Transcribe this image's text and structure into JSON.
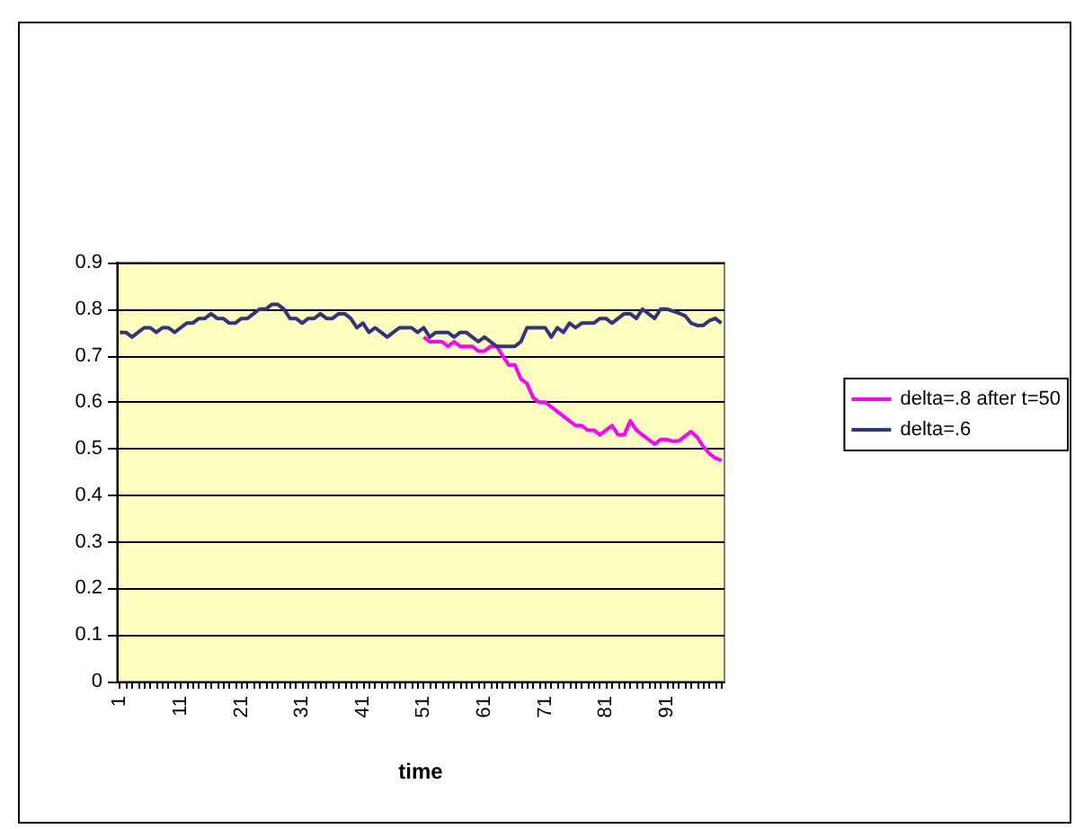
{
  "chart_data": {
    "type": "line",
    "xlabel": "time",
    "categories": [
      "1",
      null,
      null,
      null,
      null,
      null,
      null,
      null,
      null,
      null,
      "11",
      null,
      null,
      null,
      null,
      null,
      null,
      null,
      null,
      null,
      "21",
      null,
      null,
      null,
      null,
      null,
      null,
      null,
      null,
      null,
      "31",
      null,
      null,
      null,
      null,
      null,
      null,
      null,
      null,
      null,
      "41",
      null,
      null,
      null,
      null,
      null,
      null,
      null,
      null,
      null,
      "51",
      null,
      null,
      null,
      null,
      null,
      null,
      null,
      null,
      null,
      "61",
      null,
      null,
      null,
      null,
      null,
      null,
      null,
      null,
      null,
      "71",
      null,
      null,
      null,
      null,
      null,
      null,
      null,
      null,
      null,
      "81",
      null,
      null,
      null,
      null,
      null,
      null,
      null,
      null,
      null,
      "91",
      null,
      null,
      null,
      null,
      null,
      null,
      null,
      null,
      null
    ],
    "series": [
      {
        "name": "delta=.8 after t=50",
        "color": "#ff00ff",
        "values": [
          null,
          null,
          null,
          null,
          null,
          null,
          null,
          null,
          null,
          null,
          null,
          null,
          null,
          null,
          null,
          null,
          null,
          null,
          null,
          null,
          null,
          null,
          null,
          null,
          null,
          null,
          null,
          null,
          null,
          null,
          null,
          null,
          null,
          null,
          null,
          null,
          null,
          null,
          null,
          null,
          null,
          null,
          null,
          null,
          null,
          null,
          null,
          null,
          null,
          null,
          0.74,
          0.73,
          0.73,
          0.73,
          0.72,
          0.73,
          0.72,
          0.72,
          0.72,
          0.71,
          0.71,
          0.72,
          0.72,
          0.7,
          0.68,
          0.68,
          0.65,
          0.64,
          0.61,
          0.6,
          0.6,
          0.59,
          0.58,
          0.57,
          0.56,
          0.55,
          0.55,
          0.54,
          0.54,
          0.53,
          0.54,
          0.55,
          0.53,
          0.53,
          0.56,
          0.54,
          0.53,
          0.52,
          0.51,
          0.52,
          0.52,
          0.516,
          0.517,
          0.527,
          0.537,
          0.525,
          0.505,
          0.49,
          0.48,
          0.475
        ]
      },
      {
        "name": "delta=.6",
        "color": "#333380",
        "values": [
          0.75,
          0.75,
          0.74,
          0.75,
          0.76,
          0.76,
          0.75,
          0.76,
          0.76,
          0.75,
          0.76,
          0.77,
          0.77,
          0.78,
          0.78,
          0.79,
          0.78,
          0.78,
          0.77,
          0.77,
          0.78,
          0.78,
          0.79,
          0.8,
          0.8,
          0.81,
          0.81,
          0.8,
          0.78,
          0.78,
          0.77,
          0.78,
          0.78,
          0.79,
          0.78,
          0.78,
          0.79,
          0.79,
          0.78,
          0.76,
          0.77,
          0.75,
          0.76,
          0.75,
          0.74,
          0.75,
          0.76,
          0.76,
          0.76,
          0.75,
          0.76,
          0.74,
          0.75,
          0.75,
          0.75,
          0.74,
          0.75,
          0.75,
          0.74,
          0.73,
          0.74,
          0.73,
          0.72,
          0.72,
          0.72,
          0.72,
          0.73,
          0.76,
          0.76,
          0.76,
          0.76,
          0.74,
          0.76,
          0.75,
          0.77,
          0.76,
          0.77,
          0.77,
          0.77,
          0.78,
          0.78,
          0.77,
          0.78,
          0.79,
          0.79,
          0.78,
          0.8,
          0.79,
          0.78,
          0.8,
          0.8,
          0.796,
          0.791,
          0.786,
          0.77,
          0.765,
          0.765,
          0.775,
          0.78,
          0.77
        ]
      }
    ],
    "ylim": [
      0,
      0.9
    ],
    "yticks": [
      0,
      0.1,
      0.2,
      0.3,
      0.4,
      0.5,
      0.6,
      0.7,
      0.8,
      0.9
    ],
    "grid": "y",
    "legend": "right",
    "marker": "none",
    "line_style": "solid"
  }
}
